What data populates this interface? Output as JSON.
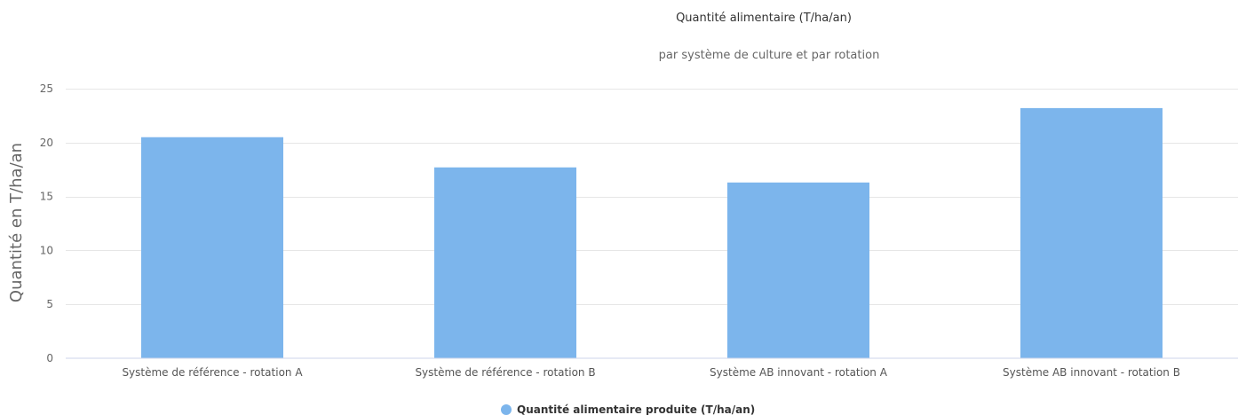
{
  "chart_data": {
    "type": "bar",
    "title": "Quantité alimentaire (T/ha/an)",
    "subtitle": "par système de culture et par rotation",
    "xlabel": "",
    "ylabel": "Quantité en T/ha/an",
    "ylim": [
      0,
      25
    ],
    "yticks": [
      0,
      5,
      10,
      15,
      20,
      25
    ],
    "grid": true,
    "legend_position": "bottom-center",
    "categories": [
      "Système de référence - rotation A",
      "Système de référence - rotation B",
      "Système AB innovant - rotation A",
      "Système AB innovant - rotation B"
    ],
    "series": [
      {
        "name": "Quantité alimentaire produite (T/ha/an)",
        "color": "#7cb5ec",
        "values": [
          20.5,
          17.7,
          16.3,
          23.2
        ]
      }
    ]
  }
}
